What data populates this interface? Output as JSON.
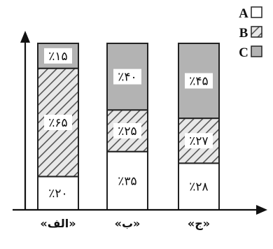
{
  "chart_data": {
    "type": "bar",
    "stacked": true,
    "orientation": "vertical",
    "categories": [
      "«الف»",
      "«ب»",
      "«ج»"
    ],
    "series": [
      {
        "name": "A",
        "pattern": "empty",
        "values": [
          20,
          35,
          28
        ],
        "labels": [
          "٪۲۰",
          "٪۳۵",
          "٪۲۸"
        ]
      },
      {
        "name": "B",
        "pattern": "hatched",
        "values": [
          65,
          25,
          27
        ],
        "labels": [
          "٪۶۵",
          "٪۲۵",
          "٪۲۷"
        ]
      },
      {
        "name": "C",
        "pattern": "gray",
        "values": [
          15,
          40,
          45
        ],
        "labels": [
          "٪۱۵",
          "٪۴۰",
          "٪۴۵"
        ]
      }
    ],
    "ylim": [
      0,
      100
    ],
    "legend_position": "top-right",
    "grid": false,
    "title": "",
    "xlabel": "",
    "ylabel": ""
  },
  "colors": {
    "gray_fill": "#b3b3b3",
    "hatch_fill": "#e8e8e8",
    "hatch_stroke": "#555555",
    "outline": "#222222",
    "empty_fill": "#ffffff"
  }
}
